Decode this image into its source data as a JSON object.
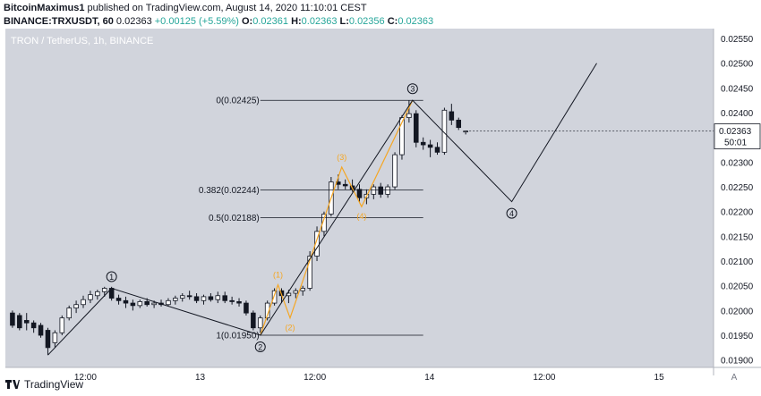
{
  "header": {
    "author": "BitcoinMaximus1",
    "published": "published on TradingView.com, August 14, 2020 11:10:01 CEST",
    "symbol": "BINANCE:TRXUSDT, 60",
    "last": "0.02363",
    "change": "+0.00125 (+5.59%)",
    "o_label": "O:",
    "o_value": "0.02361",
    "h_label": "H:",
    "h_value": "0.02363",
    "l_label": "L:",
    "l_value": "0.02356",
    "c_label": "C:",
    "c_value": "0.02363"
  },
  "footer": {
    "brand": "TradingView",
    "logo_icon": "tradingview-logo-icon"
  },
  "colors": {
    "chart_bg": "#d1d4dc",
    "price_axis_bg": "#ffffff",
    "candle_up": "#ffffff",
    "candle_down": "#131722",
    "wave_line": "#131722",
    "subwave_line": "#f5a623",
    "subwave_label": "#f5a623",
    "change_text": "#26a69a"
  },
  "chart_data": {
    "type": "candlestick",
    "title": "TRON / TetherUS, 1h, BINANCE",
    "ylim": [
      0.01885,
      0.0257
    ],
    "y_ticks": [
      "0.02550",
      "0.02500",
      "0.02450",
      "0.02400",
      "0.02350",
      "0.02300",
      "0.02250",
      "0.02200",
      "0.02150",
      "0.02100",
      "0.02050",
      "0.02000",
      "0.01950",
      "0.01900"
    ],
    "x_tick_labels": [
      "12:00",
      "13",
      "12:00",
      "14",
      "12:00",
      "15"
    ],
    "x_tick_positions_bar": [
      10.3,
      26.5,
      42.7,
      58.9,
      75.1,
      91.3
    ],
    "x_range_bar": [
      -1,
      99
    ],
    "last_price_label": "0.02363",
    "countdown_label": "50:01",
    "candles": [
      [
        0.01995,
        0.02,
        0.01965,
        0.0197
      ],
      [
        0.0199,
        0.01995,
        0.0196,
        0.01965
      ],
      [
        0.0198,
        0.01995,
        0.0196,
        0.01975
      ],
      [
        0.01975,
        0.0198,
        0.01955,
        0.01965
      ],
      [
        0.0197,
        0.01975,
        0.01945,
        0.0195
      ],
      [
        0.0196,
        0.01965,
        0.0191,
        0.01925
      ],
      [
        0.01935,
        0.0196,
        0.01925,
        0.01955
      ],
      [
        0.01955,
        0.0199,
        0.0195,
        0.01985
      ],
      [
        0.01985,
        0.0201,
        0.0198,
        0.02005
      ],
      [
        0.02005,
        0.0202,
        0.01995,
        0.02012
      ],
      [
        0.02012,
        0.0203,
        0.02005,
        0.02022
      ],
      [
        0.02022,
        0.0204,
        0.02015,
        0.02032
      ],
      [
        0.0203,
        0.02042,
        0.02022,
        0.02038
      ],
      [
        0.02038,
        0.02048,
        0.02028,
        0.02045
      ],
      [
        0.02045,
        0.02048,
        0.0202,
        0.02025
      ],
      [
        0.02025,
        0.02032,
        0.02012,
        0.0202
      ],
      [
        0.0202,
        0.02028,
        0.02005,
        0.02015
      ],
      [
        0.02015,
        0.02022,
        0.02,
        0.0201
      ],
      [
        0.0201,
        0.02022,
        0.02005,
        0.02018
      ],
      [
        0.02018,
        0.02025,
        0.02008,
        0.02012
      ],
      [
        0.02012,
        0.0202,
        0.02005,
        0.02015
      ],
      [
        0.02015,
        0.02022,
        0.02008,
        0.02012
      ],
      [
        0.02012,
        0.02025,
        0.02008,
        0.0202
      ],
      [
        0.0202,
        0.0203,
        0.02012,
        0.02025
      ],
      [
        0.02025,
        0.02035,
        0.02018,
        0.0203
      ],
      [
        0.0203,
        0.0204,
        0.02022,
        0.02028
      ],
      [
        0.02028,
        0.02035,
        0.02015,
        0.0202
      ],
      [
        0.0202,
        0.02032,
        0.02012,
        0.02028
      ],
      [
        0.02028,
        0.02035,
        0.02018,
        0.02022
      ],
      [
        0.02022,
        0.02038,
        0.02015,
        0.0203
      ],
      [
        0.0203,
        0.02038,
        0.02015,
        0.0202
      ],
      [
        0.0202,
        0.02028,
        0.02012,
        0.02018
      ],
      [
        0.02018,
        0.02025,
        0.02008,
        0.02015
      ],
      [
        0.02015,
        0.0202,
        0.0199,
        0.01995
      ],
      [
        0.01995,
        0.02,
        0.0196,
        0.01965
      ],
      [
        0.01965,
        0.0199,
        0.01955,
        0.01985
      ],
      [
        0.01985,
        0.0202,
        0.0198,
        0.02015
      ],
      [
        0.02015,
        0.02045,
        0.0201,
        0.0204
      ],
      [
        0.0204,
        0.02045,
        0.02015,
        0.0203
      ],
      [
        0.0203,
        0.02042,
        0.02015,
        0.02035
      ],
      [
        0.02035,
        0.02045,
        0.02025,
        0.0204
      ],
      [
        0.0204,
        0.0205,
        0.0203,
        0.02045
      ],
      [
        0.02045,
        0.0212,
        0.0204,
        0.0211
      ],
      [
        0.0211,
        0.0217,
        0.021,
        0.0216
      ],
      [
        0.0216,
        0.022,
        0.0215,
        0.02195
      ],
      [
        0.02195,
        0.0227,
        0.0219,
        0.0226
      ],
      [
        0.0226,
        0.02275,
        0.02245,
        0.02255
      ],
      [
        0.02255,
        0.02265,
        0.02245,
        0.02252
      ],
      [
        0.02252,
        0.02265,
        0.0224,
        0.02245
      ],
      [
        0.02245,
        0.02255,
        0.0222,
        0.02228
      ],
      [
        0.02228,
        0.02245,
        0.02215,
        0.02235
      ],
      [
        0.02235,
        0.02255,
        0.02225,
        0.0225
      ],
      [
        0.0225,
        0.02258,
        0.02228,
        0.02235
      ],
      [
        0.02235,
        0.02255,
        0.02228,
        0.0225
      ],
      [
        0.0225,
        0.0232,
        0.02245,
        0.02315
      ],
      [
        0.02315,
        0.02395,
        0.02305,
        0.0239
      ],
      [
        0.0239,
        0.02425,
        0.0238,
        0.02398
      ],
      [
        0.02398,
        0.02405,
        0.0233,
        0.0234
      ],
      [
        0.0234,
        0.0235,
        0.02325,
        0.02335
      ],
      [
        0.02335,
        0.02345,
        0.0231,
        0.0233
      ],
      [
        0.0233,
        0.0234,
        0.02315,
        0.0232
      ],
      [
        0.0232,
        0.0241,
        0.02315,
        0.02405
      ],
      [
        0.02402,
        0.02418,
        0.02375,
        0.02385
      ],
      [
        0.02385,
        0.0239,
        0.02365,
        0.0237
      ],
      [
        0.02361,
        0.02363,
        0.02356,
        0.02363
      ]
    ],
    "wave_path": [
      [
        5,
        0.0191
      ],
      [
        14,
        0.02045
      ],
      [
        35,
        0.0195
      ],
      [
        56.5,
        0.02425
      ],
      [
        70.5,
        0.0222
      ],
      [
        82.5,
        0.025
      ]
    ],
    "subwave_path": [
      [
        35,
        0.0195
      ],
      [
        37.5,
        0.02052
      ],
      [
        39.2,
        0.01985
      ],
      [
        46.5,
        0.0229
      ],
      [
        49.3,
        0.0221
      ],
      [
        56.5,
        0.02425
      ]
    ],
    "wave_labels": [
      {
        "text": "1",
        "bar": 14,
        "price": 0.02045,
        "pos": "above"
      },
      {
        "text": "2",
        "bar": 35,
        "price": 0.0195,
        "pos": "below"
      },
      {
        "text": "3",
        "bar": 56.5,
        "price": 0.02425,
        "pos": "above"
      },
      {
        "text": "4",
        "bar": 70.5,
        "price": 0.0222,
        "pos": "below"
      }
    ],
    "subwave_labels": [
      {
        "text": "(1)",
        "bar": 37.5,
        "price": 0.02052,
        "pos": "above"
      },
      {
        "text": "(2)",
        "bar": 39.2,
        "price": 0.01985,
        "pos": "below"
      },
      {
        "text": "(3)",
        "bar": 46.5,
        "price": 0.0229,
        "pos": "above"
      },
      {
        "text": "(4)",
        "bar": 49.3,
        "price": 0.0221,
        "pos": "below"
      }
    ],
    "fib_levels": [
      {
        "label": "0(0.02425)",
        "price": 0.02425
      },
      {
        "label": "0.382(0.02244)",
        "price": 0.02244
      },
      {
        "label": "0.5(0.02188)",
        "price": 0.02188
      },
      {
        "label": "1(0.01950)",
        "price": 0.0195
      }
    ],
    "fib_bar_range": [
      35,
      58
    ]
  }
}
